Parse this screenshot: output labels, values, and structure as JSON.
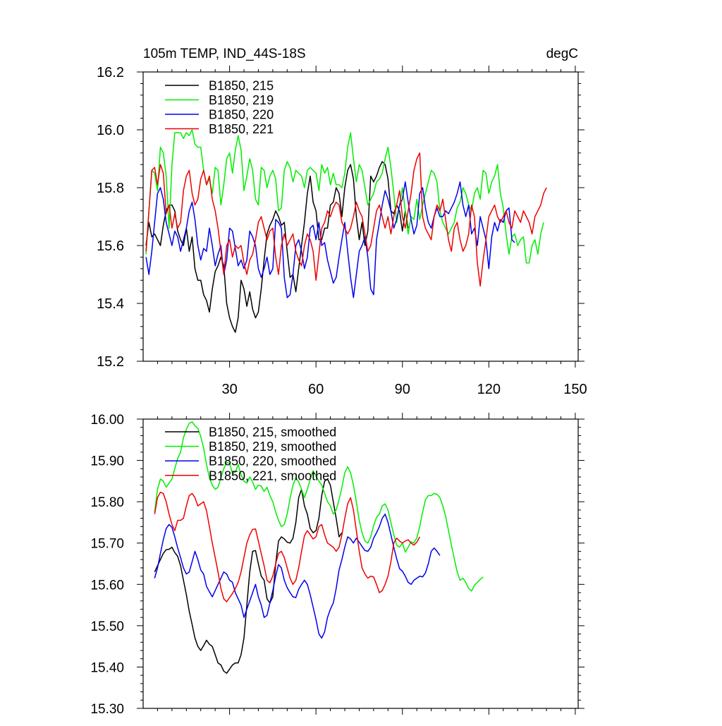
{
  "colors": {
    "black": "#000000",
    "green": "#00ee00",
    "blue": "#0000ee",
    "red": "#ee0000"
  },
  "chart_data": [
    {
      "type": "line",
      "title": "105m TEMP, IND_44S-18S",
      "units": "degC",
      "xlim": [
        0,
        151
      ],
      "ylim": [
        15.2,
        16.2
      ],
      "xticks": [
        30,
        60,
        90,
        120,
        150
      ],
      "xtick_labels": [
        "30",
        "60",
        "90",
        "120",
        "150"
      ],
      "yticks": [
        15.2,
        15.4,
        15.6,
        15.8,
        16.0,
        16.2
      ],
      "ytick_labels": [
        "15.2",
        "15.4",
        "15.6",
        "15.8",
        "16.0",
        "16.2"
      ],
      "legend_position": "top-left",
      "series": [
        {
          "name": "B1850, 215",
          "color": "#000000",
          "x0": 1,
          "values": [
            15.6,
            15.68,
            15.63,
            15.64,
            15.62,
            15.6,
            15.67,
            15.72,
            15.74,
            15.74,
            15.72,
            15.65,
            15.62,
            15.6,
            15.66,
            15.58,
            15.63,
            15.52,
            15.48,
            15.48,
            15.43,
            15.41,
            15.37,
            15.45,
            15.51,
            15.53,
            15.56,
            15.53,
            15.4,
            15.35,
            15.32,
            15.3,
            15.35,
            15.48,
            15.45,
            15.39,
            15.44,
            15.38,
            15.35,
            15.37,
            15.45,
            15.55,
            15.64,
            15.67,
            15.69,
            15.72,
            15.7,
            15.67,
            15.68,
            15.58,
            15.49,
            15.5,
            15.44,
            15.52,
            15.6,
            15.68,
            15.78,
            15.84,
            15.75,
            15.72,
            15.62,
            15.62,
            15.66,
            15.66,
            15.74,
            15.75,
            15.8,
            15.78,
            15.7,
            15.8,
            15.86,
            15.88,
            15.83,
            15.7,
            15.62,
            15.68,
            15.6,
            15.65,
            15.84,
            15.82,
            15.84,
            15.87,
            15.89,
            15.88,
            15.83,
            15.72,
            15.71,
            15.74,
            15.72,
            15.65,
            15.72,
            15.66
          ]
        },
        {
          "name": "B1850, 219",
          "color": "#00ee00",
          "x0": 1,
          "values": [
            15.57,
            15.72,
            15.86,
            15.85,
            15.79,
            15.94,
            15.92,
            15.84,
            15.66,
            15.88,
            15.99,
            15.99,
            15.99,
            15.97,
            15.99,
            15.98,
            16.0,
            15.95,
            15.94,
            15.94,
            15.86,
            15.81,
            15.83,
            15.78,
            15.87,
            15.86,
            15.74,
            15.81,
            15.9,
            15.92,
            15.85,
            15.93,
            15.98,
            15.93,
            15.79,
            15.84,
            15.9,
            15.86,
            15.76,
            15.74,
            15.87,
            15.86,
            15.8,
            15.84,
            15.86,
            15.83,
            15.72,
            15.73,
            15.86,
            15.89,
            15.87,
            15.82,
            15.86,
            15.85,
            15.84,
            15.8,
            15.86,
            15.87,
            15.86,
            15.85,
            15.79,
            15.88,
            15.85,
            15.87,
            15.81,
            15.85,
            15.81,
            15.81,
            15.8,
            15.85,
            15.94,
            15.99,
            15.9,
            15.82,
            15.88,
            15.86,
            15.8,
            15.74,
            15.76,
            15.78,
            15.82,
            15.83,
            15.85,
            15.9,
            15.94,
            15.87,
            15.78,
            15.68,
            15.74,
            15.8,
            15.72,
            15.64,
            15.7,
            15.69,
            15.76,
            15.69,
            15.74,
            15.78,
            15.82,
            15.86,
            15.85,
            15.82,
            15.72,
            15.68,
            15.66,
            15.64,
            15.66,
            15.68,
            15.73,
            15.75,
            15.8,
            15.78,
            15.74,
            15.72,
            15.78,
            15.8,
            15.76,
            15.86,
            15.85,
            15.78,
            15.82,
            15.84,
            15.88,
            15.78,
            15.73,
            15.64,
            15.57,
            15.63,
            15.64,
            15.6,
            15.62,
            15.63,
            15.54,
            15.54,
            15.6,
            15.62,
            15.57,
            15.64,
            15.68
          ]
        },
        {
          "name": "B1850, 220",
          "color": "#0000ee",
          "x0": 1,
          "values": [
            15.56,
            15.5,
            15.58,
            15.68,
            15.78,
            15.8,
            15.76,
            15.68,
            15.64,
            15.6,
            15.65,
            15.63,
            15.58,
            15.62,
            15.66,
            15.72,
            15.75,
            15.69,
            15.6,
            15.55,
            15.59,
            15.58,
            15.66,
            15.6,
            15.53,
            15.57,
            15.6,
            15.5,
            15.55,
            15.66,
            15.65,
            15.59,
            15.53,
            15.55,
            15.52,
            15.55,
            15.65,
            15.63,
            15.6,
            15.52,
            15.49,
            15.52,
            15.56,
            15.5,
            15.52,
            15.69,
            15.68,
            15.66,
            15.49,
            15.42,
            15.43,
            15.5,
            15.6,
            15.62,
            15.58,
            15.52,
            15.56,
            15.66,
            15.67,
            15.62,
            15.68,
            15.6,
            15.61,
            15.55,
            15.51,
            15.47,
            15.49,
            15.56,
            15.62,
            15.68,
            15.58,
            15.49,
            15.42,
            15.5,
            15.58,
            15.6,
            15.63,
            15.56,
            15.45,
            15.43,
            15.62,
            15.68,
            15.74,
            15.79,
            15.76,
            15.72,
            15.66,
            15.69,
            15.74,
            15.76,
            15.82,
            15.75,
            15.69,
            15.64,
            15.67,
            15.78,
            15.8,
            15.73,
            15.68,
            15.66,
            15.7,
            15.73,
            15.7,
            15.7,
            15.72,
            15.71,
            15.73,
            15.75,
            15.78,
            15.82,
            15.74,
            15.7,
            15.74,
            15.64,
            15.66,
            15.6,
            15.7,
            15.66,
            15.62,
            15.52,
            15.63,
            15.68,
            15.65,
            15.69,
            15.68,
            15.72,
            15.73,
            15.62,
            15.61
          ]
        },
        {
          "name": "B1850, 221",
          "color": "#ee0000",
          "x0": 1,
          "values": [
            15.58,
            15.72,
            15.86,
            15.87,
            15.81,
            15.88,
            15.85,
            15.71,
            15.74,
            15.66,
            15.71,
            15.66,
            15.68,
            15.79,
            15.84,
            15.86,
            15.78,
            15.74,
            15.76,
            15.83,
            15.86,
            15.81,
            15.84,
            15.76,
            15.72,
            15.66,
            15.58,
            15.5,
            15.6,
            15.62,
            15.56,
            15.6,
            15.59,
            15.6,
            15.54,
            15.5,
            15.55,
            15.57,
            15.62,
            15.68,
            15.7,
            15.66,
            15.62,
            15.65,
            15.66,
            15.56,
            15.5,
            15.6,
            15.64,
            15.6,
            15.62,
            15.64,
            15.58,
            15.55,
            15.53,
            15.6,
            15.64,
            15.62,
            15.58,
            15.48,
            15.57,
            15.66,
            15.68,
            15.72,
            15.7,
            15.73,
            15.75,
            15.74,
            15.68,
            15.66,
            15.64,
            15.66,
            15.7,
            15.75,
            15.72,
            15.7,
            15.64,
            15.58,
            15.6,
            15.66,
            15.72,
            15.74,
            15.7,
            15.66,
            15.7,
            15.64,
            15.7,
            15.74,
            15.79,
            15.7,
            15.66,
            15.72,
            15.78,
            15.86,
            15.9,
            15.92,
            15.7,
            15.66,
            15.64,
            15.62,
            15.7,
            15.74,
            15.72,
            15.76,
            15.69,
            15.62,
            15.58,
            15.66,
            15.68,
            15.62,
            15.58,
            15.6,
            15.64,
            15.74,
            15.7,
            15.54,
            15.46,
            15.55,
            15.62,
            15.7,
            15.72,
            15.74,
            15.7,
            15.68,
            15.7,
            15.72,
            15.68,
            15.66,
            15.72,
            15.7,
            15.68,
            15.72,
            15.7,
            15.68,
            15.64,
            15.7,
            15.72,
            15.74,
            15.78,
            15.8
          ]
        }
      ]
    },
    {
      "type": "line",
      "xlim": [
        0,
        151
      ],
      "ylim": [
        15.3,
        16.0
      ],
      "xticks": [
        30,
        60,
        90,
        120,
        150
      ],
      "yticks": [
        15.3,
        15.4,
        15.5,
        15.6,
        15.7,
        15.8,
        15.9,
        16.0
      ],
      "ytick_labels": [
        "15.30",
        "15.40",
        "15.50",
        "15.60",
        "15.70",
        "15.80",
        "15.90",
        "16.00"
      ],
      "legend_position": "top-left",
      "series": [
        {
          "name": "B1850, 215, smoothed",
          "color": "#000000",
          "x0": 4,
          "values": [
            15.63,
            15.645,
            15.66,
            15.675,
            15.684,
            15.685,
            15.69,
            15.677,
            15.668,
            15.645,
            15.61,
            15.575,
            15.535,
            15.503,
            15.47,
            15.45,
            15.44,
            15.452,
            15.465,
            15.455,
            15.45,
            15.43,
            15.41,
            15.405,
            15.39,
            15.385,
            15.395,
            15.405,
            15.41,
            15.41,
            15.43,
            15.47,
            15.55,
            15.63,
            15.68,
            15.682,
            15.65,
            15.62,
            15.61,
            15.565,
            15.555,
            15.57,
            15.65,
            15.705,
            15.715,
            15.71,
            15.702,
            15.7,
            15.712,
            15.75,
            15.81,
            15.83,
            15.79,
            15.77,
            15.735,
            15.725,
            15.73,
            15.76,
            15.815,
            15.85,
            15.855,
            15.84,
            15.8,
            15.76,
            15.715,
            15.725
          ]
        },
        {
          "name": "B1850, 219, smoothed",
          "color": "#00ee00",
          "x0": 4,
          "values": [
            15.775,
            15.83,
            15.855,
            15.85,
            15.835,
            15.845,
            15.855,
            15.88,
            15.905,
            15.92,
            15.955,
            15.975,
            15.99,
            15.993,
            15.984,
            15.978,
            15.958,
            15.93,
            15.89,
            15.858,
            15.84,
            15.83,
            15.835,
            15.858,
            15.88,
            15.895,
            15.893,
            15.868,
            15.872,
            15.89,
            15.865,
            15.85,
            15.845,
            15.86,
            15.848,
            15.83,
            15.84,
            15.838,
            15.825,
            15.835,
            15.815,
            15.8,
            15.775,
            15.755,
            15.74,
            15.745,
            15.77,
            15.808,
            15.84,
            15.858,
            15.848,
            15.83,
            15.81,
            15.83,
            15.855,
            15.875,
            15.862,
            15.85,
            15.84,
            15.82,
            15.8,
            15.79,
            15.77,
            15.78,
            15.805,
            15.835,
            15.87,
            15.885,
            15.87,
            15.84,
            15.8,
            15.755,
            15.725,
            15.705,
            15.7,
            15.715,
            15.742,
            15.762,
            15.77,
            15.79,
            15.795,
            15.78,
            15.75,
            15.72,
            15.695,
            15.69,
            15.7,
            15.678,
            15.69,
            15.703,
            15.7,
            15.713,
            15.74,
            15.775,
            15.805,
            15.815,
            15.815,
            15.82,
            15.818,
            15.81,
            15.79,
            15.765,
            15.73,
            15.695,
            15.662,
            15.63,
            15.61,
            15.615,
            15.605,
            15.59,
            15.584,
            15.598,
            15.605,
            15.612,
            15.618
          ]
        },
        {
          "name": "B1850, 220, smoothed",
          "color": "#0000ee",
          "x0": 4,
          "values": [
            15.615,
            15.64,
            15.675,
            15.708,
            15.735,
            15.745,
            15.738,
            15.715,
            15.688,
            15.665,
            15.64,
            15.625,
            15.63,
            15.655,
            15.68,
            15.66,
            15.635,
            15.625,
            15.595,
            15.582,
            15.57,
            15.585,
            15.6,
            15.615,
            15.63,
            15.625,
            15.61,
            15.605,
            15.58,
            15.565,
            15.55,
            15.52,
            15.54,
            15.56,
            15.58,
            15.6,
            15.57,
            15.55,
            15.52,
            15.525,
            15.555,
            15.585,
            15.62,
            15.648,
            15.64,
            15.61,
            15.592,
            15.58,
            15.57,
            15.568,
            15.588,
            15.6,
            15.61,
            15.6,
            15.575,
            15.545,
            15.515,
            15.48,
            15.47,
            15.485,
            15.52,
            15.54,
            15.555,
            15.59,
            15.635,
            15.66,
            15.69,
            15.715,
            15.71,
            15.7,
            15.712,
            15.702,
            15.692,
            15.682,
            15.68,
            15.69,
            15.712,
            15.725,
            15.74,
            15.76,
            15.77,
            15.75,
            15.72,
            15.69,
            15.662,
            15.638,
            15.632,
            15.62,
            15.605,
            15.6,
            15.61,
            15.615,
            15.62,
            15.618,
            15.628,
            15.65,
            15.68,
            15.688,
            15.68,
            15.67
          ]
        },
        {
          "name": "B1850, 221, smoothed",
          "color": "#ee0000",
          "x0": 4,
          "values": [
            15.77,
            15.81,
            15.823,
            15.82,
            15.8,
            15.77,
            15.745,
            15.73,
            15.755,
            15.755,
            15.76,
            15.79,
            15.815,
            15.82,
            15.81,
            15.79,
            15.795,
            15.8,
            15.778,
            15.74,
            15.7,
            15.665,
            15.63,
            15.59,
            15.565,
            15.558,
            15.568,
            15.578,
            15.59,
            15.605,
            15.63,
            15.665,
            15.7,
            15.72,
            15.733,
            15.734,
            15.705,
            15.675,
            15.645,
            15.61,
            15.604,
            15.62,
            15.65,
            15.675,
            15.68,
            15.665,
            15.64,
            15.615,
            15.6,
            15.61,
            15.64,
            15.68,
            15.718,
            15.73,
            15.72,
            15.71,
            15.715,
            15.74,
            15.745,
            15.72,
            15.7,
            15.695,
            15.69,
            15.68,
            15.69,
            15.72,
            15.76,
            15.795,
            15.81,
            15.78,
            15.73,
            15.68,
            15.64,
            15.625,
            15.615,
            15.62,
            15.618,
            15.6,
            15.58,
            15.585,
            15.6,
            15.62,
            15.655,
            15.7,
            15.712,
            15.705,
            15.7,
            15.705,
            15.708,
            15.7,
            15.695,
            15.702,
            15.715
          ]
        }
      ]
    }
  ]
}
